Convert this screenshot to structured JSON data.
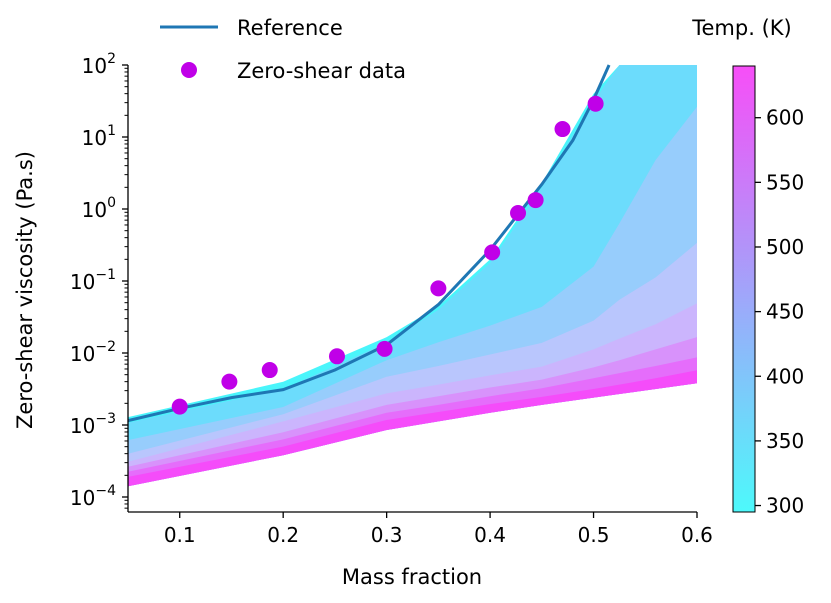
{
  "chart_data": {
    "type": "scatter",
    "xlabel": "Mass fraction",
    "ylabel": "Zero-shear viscosity (Pa.s)",
    "xlim": [
      0.05,
      0.6
    ],
    "ylim_log10": [
      -4.2,
      2
    ],
    "yscale": "log",
    "grid": false,
    "x_ticks": [
      "0.1",
      "0.2",
      "0.3",
      "0.4",
      "0.5",
      "0.6"
    ],
    "x_tick_values": [
      0.1,
      0.2,
      0.3,
      0.4,
      0.5,
      0.6
    ],
    "y_ticks": [
      {
        "base": "10",
        "exp": "−4",
        "value": -4
      },
      {
        "base": "10",
        "exp": "−3",
        "value": -3
      },
      {
        "base": "10",
        "exp": "−2",
        "value": -2
      },
      {
        "base": "10",
        "exp": "−1",
        "value": -1
      },
      {
        "base": "10",
        "exp": "0",
        "value": 0
      },
      {
        "base": "10",
        "exp": "1",
        "value": 1
      },
      {
        "base": "10",
        "exp": "2",
        "value": 2
      }
    ],
    "legend": {
      "placement": "top-left, above plot",
      "entries": [
        {
          "label": "Reference",
          "type": "line",
          "color": "#1f77b4"
        },
        {
          "label": "Zero-shear data",
          "type": "marker",
          "color": "#c000e8"
        }
      ]
    },
    "series": [
      {
        "name": "Reference",
        "type": "line",
        "color": "#1f77b4",
        "x": [
          0.05,
          0.1,
          0.15,
          0.2,
          0.25,
          0.3,
          0.35,
          0.4,
          0.45,
          0.48,
          0.5,
          0.515
        ],
        "y": [
          0.00115,
          0.0017,
          0.0024,
          0.0031,
          0.0058,
          0.013,
          0.047,
          0.27,
          2.2,
          9,
          33,
          100
        ]
      },
      {
        "name": "Zero-shear data",
        "type": "scatter",
        "color": "#c000e8",
        "x": [
          0.1,
          0.148,
          0.187,
          0.252,
          0.298,
          0.35,
          0.402,
          0.427,
          0.444,
          0.47,
          0.502
        ],
        "y": [
          0.0018,
          0.004,
          0.0058,
          0.009,
          0.0114,
          0.079,
          0.25,
          0.88,
          1.33,
          12.9,
          29
        ]
      }
    ],
    "contour_bands": {
      "x": [
        0.05,
        0.2,
        0.3,
        0.35,
        0.4,
        0.45,
        0.5,
        0.525,
        0.56,
        0.6
      ],
      "upper_edges_log10": [
        {
          "color": "#4af5fb",
          "y": [
            -2.89,
            -2.4,
            -1.78,
            -1.35,
            -0.7,
            0.36,
            1.6,
            2,
            2,
            2
          ]
        },
        {
          "color": "#6cdcfc",
          "y": [
            -2.97,
            -2.5,
            -1.86,
            -1.4,
            -0.75,
            0.3,
            1.5,
            2,
            2,
            2
          ]
        },
        {
          "color": "#97cdfc",
          "y": [
            -3.21,
            -2.75,
            -2.1,
            -1.85,
            -1.62,
            -1.36,
            -0.8,
            -0.2,
            0.68,
            1.42
          ]
        },
        {
          "color": "#b9c6fd",
          "y": [
            -3.4,
            -2.85,
            -2.33,
            -2.18,
            -2.02,
            -1.86,
            -1.55,
            -1.26,
            -0.95,
            -0.47
          ]
        },
        {
          "color": "#cbb5fd",
          "y": [
            -3.51,
            -2.95,
            -2.56,
            -2.44,
            -2.31,
            -2.19,
            -1.95,
            -1.8,
            -1.6,
            -1.31
          ]
        },
        {
          "color": "#d892fb",
          "y": [
            -3.58,
            -3.1,
            -2.72,
            -2.6,
            -2.48,
            -2.37,
            -2.2,
            -2.1,
            -1.95,
            -1.78
          ]
        },
        {
          "color": "#e56dfb",
          "y": [
            -3.65,
            -3.2,
            -2.83,
            -2.72,
            -2.6,
            -2.49,
            -2.35,
            -2.28,
            -2.18,
            -2.06
          ]
        },
        {
          "color": "#f54cfa",
          "y": [
            -3.72,
            -3.3,
            -2.93,
            -2.82,
            -2.71,
            -2.61,
            -2.5,
            -2.44,
            -2.35,
            -2.24
          ]
        }
      ],
      "lower_edge_log10": [
        -3.85,
        -3.42,
        -3.07,
        -2.95,
        -2.83,
        -2.72,
        -2.62,
        -2.57,
        -2.5,
        -2.42
      ]
    },
    "colorbar": {
      "title": "Temp. (K)",
      "range": [
        295,
        640
      ],
      "ticks": [
        "300",
        "350",
        "400",
        "450",
        "500",
        "550",
        "600"
      ],
      "tick_values": [
        300,
        350,
        400,
        450,
        500,
        550,
        600
      ],
      "color_low": "#4df9fb",
      "color_high": "#f74ef8"
    }
  }
}
